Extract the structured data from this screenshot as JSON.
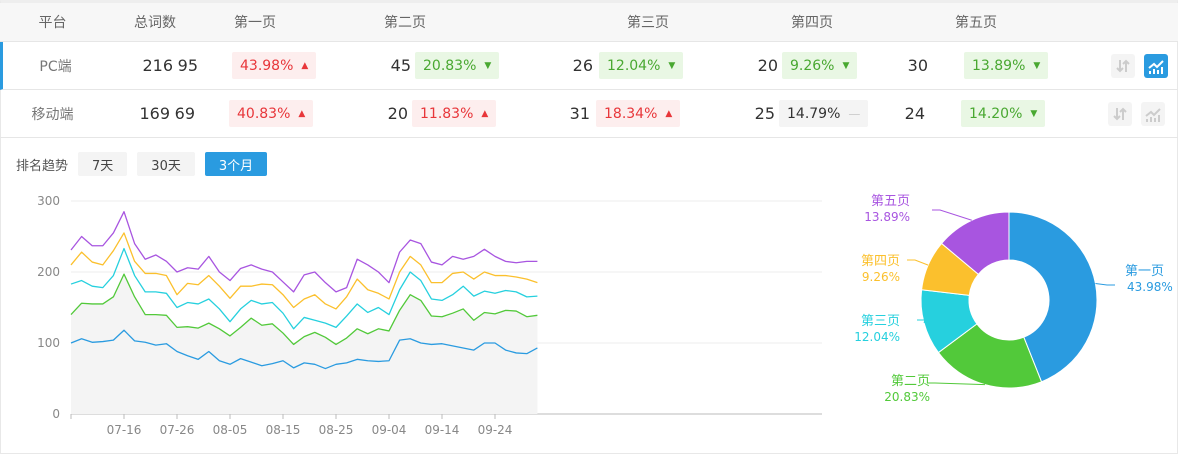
{
  "table": {
    "headers": [
      "平台",
      "总词数",
      "第一页",
      "第二页",
      "第三页",
      "第四页",
      "第五页"
    ],
    "rows": [
      {
        "platform": "PC端",
        "total": "216",
        "pages": [
          {
            "count": "95",
            "pct": "43.98%",
            "trend": "up"
          },
          {
            "count": "45",
            "pct": "20.83%",
            "trend": "down"
          },
          {
            "count": "26",
            "pct": "12.04%",
            "trend": "down"
          },
          {
            "count": "20",
            "pct": "9.26%",
            "trend": "down"
          },
          {
            "count": "30",
            "pct": "13.89%",
            "trend": "down"
          }
        ],
        "chart_active": true
      },
      {
        "platform": "移动端",
        "total": "169",
        "pages": [
          {
            "count": "69",
            "pct": "40.83%",
            "trend": "up"
          },
          {
            "count": "20",
            "pct": "11.83%",
            "trend": "up"
          },
          {
            "count": "31",
            "pct": "18.34%",
            "trend": "up"
          },
          {
            "count": "25",
            "pct": "14.79%",
            "trend": "flat"
          },
          {
            "count": "24",
            "pct": "14.20%",
            "trend": "down"
          }
        ],
        "chart_active": false
      }
    ]
  },
  "trend": {
    "label": "排名趋势",
    "ranges": [
      "7天",
      "30天",
      "3个月"
    ],
    "selected": "3个月"
  },
  "colors": {
    "accent": "#2a9be0",
    "up": "#e8363a",
    "down": "#49a831"
  },
  "chart_data": [
    {
      "type": "line",
      "stacked": true,
      "yticks": [
        "0",
        "100",
        "200",
        "300"
      ],
      "ylim": [
        0,
        300
      ],
      "xticks": [
        "07-16",
        "07-26",
        "08-05",
        "08-15",
        "08-25",
        "09-04",
        "09-14",
        "09-24"
      ],
      "x_start": "07-06",
      "x_step_days": 2,
      "grid": true,
      "series": [
        {
          "name": "第一页",
          "color": "#2a9be0",
          "values": [
            100,
            106,
            101,
            102,
            104,
            118,
            103,
            101,
            97,
            99,
            88,
            82,
            77,
            88,
            75,
            70,
            78,
            73,
            68,
            71,
            75,
            65,
            72,
            70,
            64,
            70,
            72,
            77,
            75,
            74,
            75,
            104,
            106,
            100,
            98,
            99,
            96,
            93,
            90,
            100,
            100,
            90,
            86,
            85,
            93
          ]
        },
        {
          "name": "第二页",
          "color": "#52c93a",
          "values": [
            140,
            156,
            155,
            155,
            165,
            197,
            165,
            140,
            140,
            139,
            122,
            123,
            121,
            128,
            120,
            110,
            122,
            135,
            125,
            127,
            114,
            98,
            109,
            115,
            108,
            98,
            107,
            120,
            113,
            120,
            117,
            146,
            168,
            160,
            138,
            137,
            142,
            148,
            132,
            143,
            141,
            146,
            145,
            137,
            139
          ]
        },
        {
          "name": "第三页",
          "color": "#26d0de",
          "values": [
            183,
            188,
            180,
            178,
            195,
            233,
            195,
            172,
            172,
            170,
            150,
            157,
            155,
            162,
            148,
            130,
            148,
            160,
            155,
            157,
            142,
            120,
            136,
            132,
            128,
            122,
            138,
            155,
            143,
            150,
            140,
            175,
            200,
            188,
            162,
            160,
            168,
            180,
            166,
            173,
            170,
            174,
            172,
            165,
            166
          ]
        },
        {
          "name": "第四页",
          "color": "#fbc02d",
          "values": [
            210,
            228,
            214,
            210,
            230,
            255,
            215,
            198,
            198,
            195,
            168,
            184,
            182,
            195,
            180,
            163,
            180,
            180,
            183,
            182,
            168,
            150,
            162,
            168,
            155,
            148,
            165,
            190,
            175,
            170,
            162,
            200,
            222,
            210,
            185,
            185,
            198,
            200,
            190,
            200,
            195,
            195,
            193,
            190,
            185
          ]
        },
        {
          "name": "第五页",
          "color": "#a855e0",
          "values": [
            231,
            250,
            237,
            237,
            255,
            285,
            240,
            218,
            224,
            215,
            200,
            206,
            204,
            222,
            200,
            188,
            205,
            210,
            204,
            200,
            186,
            172,
            196,
            200,
            185,
            172,
            178,
            218,
            210,
            200,
            185,
            228,
            245,
            240,
            214,
            210,
            222,
            218,
            222,
            232,
            222,
            215,
            213,
            215,
            215
          ]
        }
      ]
    },
    {
      "type": "pie",
      "donut": true,
      "slices": [
        {
          "label": "第一页",
          "pct": "43.98%",
          "value": 43.98,
          "color": "#2a9be0"
        },
        {
          "label": "第二页",
          "pct": "20.83%",
          "value": 20.83,
          "color": "#52c93a"
        },
        {
          "label": "第三页",
          "pct": "12.04%",
          "value": 12.04,
          "color": "#26d0de"
        },
        {
          "label": "第四页",
          "pct": "9.26%",
          "value": 9.26,
          "color": "#fbc02d"
        },
        {
          "label": "第五页",
          "pct": "13.89%",
          "value": 13.89,
          "color": "#a855e0"
        }
      ]
    }
  ]
}
